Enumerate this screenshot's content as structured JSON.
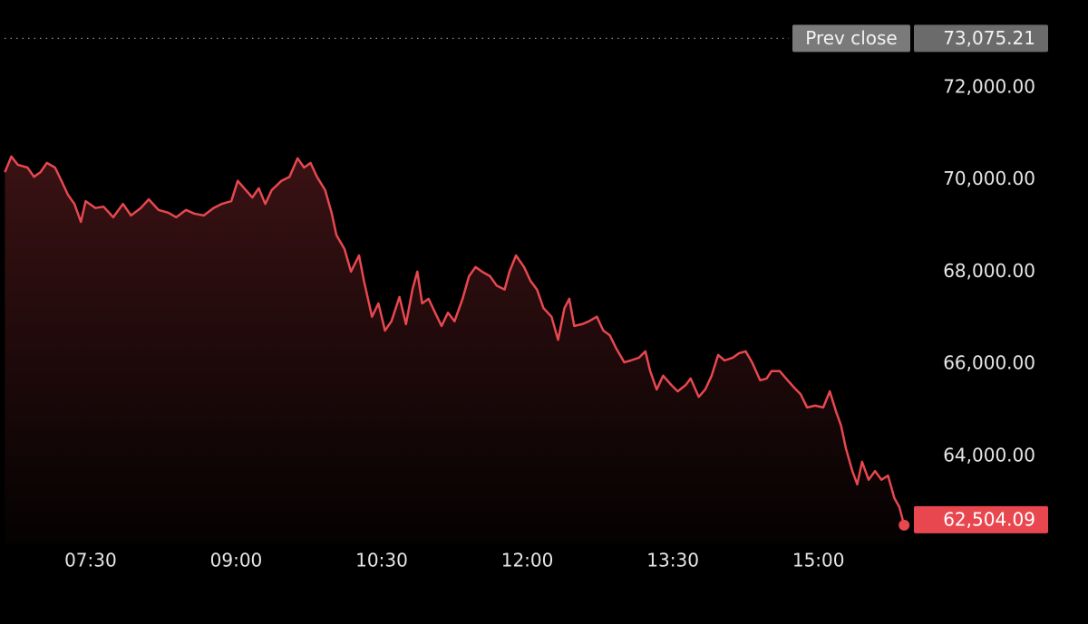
{
  "chart_data": {
    "type": "line",
    "x": [
      397,
      401,
      405,
      411,
      415,
      419,
      423,
      428,
      432,
      436,
      440,
      444,
      447,
      453,
      458,
      464,
      470,
      475,
      481,
      486,
      492,
      498,
      503,
      509,
      514,
      520,
      526,
      531,
      537,
      541,
      545,
      550,
      554,
      558,
      562,
      568,
      573,
      578,
      582,
      586,
      590,
      595,
      599,
      602,
      607,
      611,
      616,
      619,
      624,
      628,
      632,
      636,
      641,
      645,
      649,
      652,
      655,
      659,
      663,
      667,
      671,
      675,
      680,
      684,
      688,
      692,
      697,
      701,
      706,
      709,
      713,
      718,
      722,
      726,
      730,
      735,
      739,
      743,
      746,
      749,
      754,
      758,
      763,
      767,
      771,
      775,
      780,
      784,
      789,
      793,
      796,
      800,
      804,
      809,
      813,
      818,
      821,
      826,
      830,
      834,
      838,
      842,
      847,
      851,
      855,
      859,
      864,
      868,
      871,
      876,
      880,
      885,
      889,
      893,
      898,
      903,
      907,
      911,
      914,
      917,
      921,
      924,
      927,
      931,
      935,
      939,
      943,
      947,
      950,
      953
    ],
    "values": [
      70170,
      70510,
      70330,
      70270,
      70070,
      70170,
      70370,
      70270,
      69980,
      69680,
      69480,
      69090,
      69540,
      69390,
      69420,
      69190,
      69480,
      69230,
      69390,
      69580,
      69350,
      69290,
      69190,
      69350,
      69270,
      69230,
      69390,
      69480,
      69540,
      69980,
      69820,
      69620,
      69820,
      69480,
      69780,
      69980,
      70070,
      70470,
      70270,
      70370,
      70070,
      69780,
      69290,
      68800,
      68500,
      68010,
      68360,
      67810,
      67030,
      67320,
      66730,
      66930,
      67460,
      66870,
      67620,
      68010,
      67320,
      67420,
      67120,
      66830,
      67120,
      66930,
      67420,
      67910,
      68110,
      68010,
      67910,
      67710,
      67620,
      68010,
      68360,
      68110,
      67810,
      67620,
      67220,
      67030,
      66530,
      67220,
      67420,
      66830,
      66870,
      66930,
      67030,
      66730,
      66630,
      66340,
      66040,
      66080,
      66140,
      66280,
      65850,
      65450,
      65750,
      65550,
      65410,
      65550,
      65690,
      65290,
      65450,
      65750,
      66200,
      66080,
      66140,
      66240,
      66280,
      66040,
      65650,
      65690,
      65850,
      65850,
      65690,
      65490,
      65350,
      65060,
      65100,
      65060,
      65410,
      64960,
      64670,
      64170,
      63680,
      63390,
      63880,
      63490,
      63680,
      63490,
      63580,
      63090,
      62900,
      62504.09
    ],
    "color": "#e8474f",
    "xlim": [
      394,
      954
    ],
    "ylim": [
      62108,
      73908
    ],
    "xticks": [
      {
        "value": 450,
        "label": "07:30"
      },
      {
        "value": 540,
        "label": "09:00"
      },
      {
        "value": 630,
        "label": "10:30"
      },
      {
        "value": 720,
        "label": "12:00"
      },
      {
        "value": 810,
        "label": "13:30"
      },
      {
        "value": 900,
        "label": "15:00"
      }
    ],
    "yticks": [
      {
        "value": 64000,
        "label": "64,000.00"
      },
      {
        "value": 66000,
        "label": "66,000.00"
      },
      {
        "value": 68000,
        "label": "68,000.00"
      },
      {
        "value": 70000,
        "label": "70,000.00"
      },
      {
        "value": 72000,
        "label": "72,000.00"
      }
    ],
    "prev_close_title": "Prev close",
    "prev_close": 73075.21,
    "prev_close_label": "73,075.21",
    "last_value_label": "62,504.09"
  }
}
